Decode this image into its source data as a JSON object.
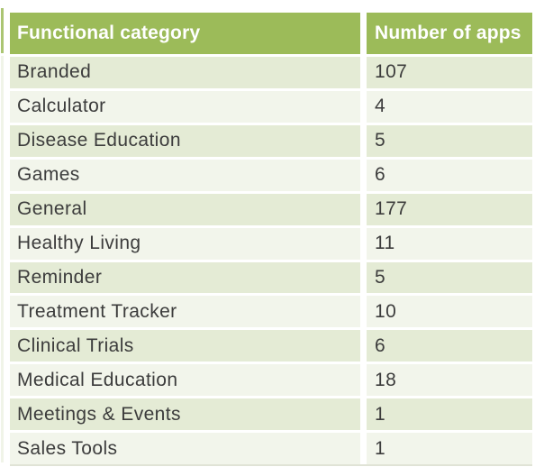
{
  "table": {
    "columns": [
      "Functional category",
      "Number of apps"
    ],
    "rows": [
      {
        "category": "Branded",
        "count": "107"
      },
      {
        "category": "Calculator",
        "count": "4"
      },
      {
        "category": "Disease Education",
        "count": "5"
      },
      {
        "category": "Games",
        "count": "6"
      },
      {
        "category": "General",
        "count": "177"
      },
      {
        "category": "Healthy Living",
        "count": "11"
      },
      {
        "category": "Reminder",
        "count": "5"
      },
      {
        "category": "Treatment Tracker",
        "count": "10"
      },
      {
        "category": "Clinical Trials",
        "count": "6"
      },
      {
        "category": "Medical Education",
        "count": "18"
      },
      {
        "category": "Meetings & Events",
        "count": "1"
      },
      {
        "category": "Sales Tools",
        "count": "1"
      }
    ]
  },
  "chart_data": {
    "type": "table",
    "columns": [
      "Functional category",
      "Number of apps"
    ],
    "categories": [
      "Branded",
      "Calculator",
      "Disease Education",
      "Games",
      "General",
      "Healthy Living",
      "Reminder",
      "Treatment Tracker",
      "Clinical Trials",
      "Medical Education",
      "Meetings & Events",
      "Sales Tools"
    ],
    "values": [
      107,
      4,
      5,
      6,
      177,
      11,
      5,
      10,
      6,
      18,
      1,
      1
    ]
  },
  "colors": {
    "page_bg": "#FFFFFF",
    "header_bg": "#9CBB59",
    "header_text": "#FFFFFF",
    "band_dark": "#E4EBD5",
    "band_light": "#F2F5EB",
    "body_text": "#3C3C3C",
    "table_edge": "#E0E3D6"
  }
}
